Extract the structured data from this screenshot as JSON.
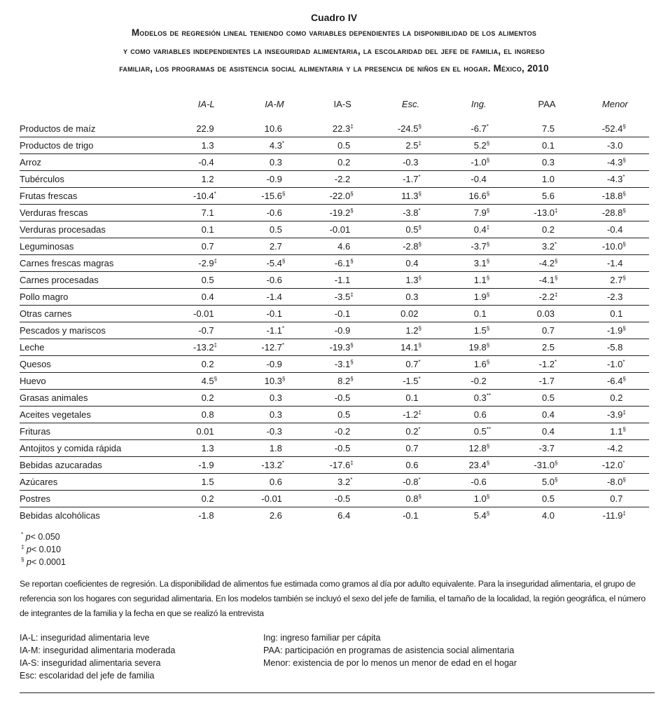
{
  "cuadro": "Cuadro IV",
  "title_lines": [
    "Modelos de regresión lineal teniendo como variables dependientes la disponibilidad de los alimentos",
    "y como variables independientes la inseguridad alimentaria, la escolaridad del jefe de familia, el ingreso",
    "familiar, los programas de asistencia social alimentaria y la presencia de niños en el hogar. México, 2010"
  ],
  "columns": [
    "IA-L",
    "IA-M",
    "IA-S",
    "Esc.",
    "Ing.",
    "PAA",
    "Menor"
  ],
  "rows": [
    {
      "label": "Productos de maíz",
      "values": [
        "22.9",
        "10.6",
        "22.3‡",
        "-24.5§",
        "-6.7*",
        "7.5",
        "-52.4§"
      ]
    },
    {
      "label": "Productos de trigo",
      "values": [
        "1.3",
        "4.3*",
        "0.5",
        "2.5‡",
        "5.2§",
        "0.1",
        "-3.0"
      ]
    },
    {
      "label": "Arroz",
      "values": [
        "-0.4",
        "0.3",
        "0.2",
        "-0.3",
        "-1.0§",
        "0.3",
        "-4.3§"
      ]
    },
    {
      "label": "Tubérculos",
      "values": [
        "1.2",
        "-0.9",
        "-2.2",
        "-1.7*",
        "-0.4",
        "1.0",
        "-4.3*"
      ]
    },
    {
      "label": "Frutas frescas",
      "values": [
        "-10.4*",
        "-15.6§",
        "-22.0§",
        "11.3§",
        "16.6§",
        "5.6",
        "-18.8§"
      ]
    },
    {
      "label": "Verduras frescas",
      "values": [
        "7.1",
        "-0.6",
        "-19.2§",
        "-3.8*",
        "7.9§",
        "-13.0‡",
        "-28.8§"
      ]
    },
    {
      "label": "Verduras procesadas",
      "values": [
        "0.1",
        "0.5",
        "-0.01",
        "0.5§",
        "0.4‡",
        "0.2",
        "-0.4"
      ]
    },
    {
      "label": "Leguminosas",
      "values": [
        "0.7",
        "2.7",
        "4.6",
        "-2.8§",
        "-3.7§",
        "3.2*",
        "-10.0§"
      ]
    },
    {
      "label": "Carnes frescas magras",
      "values": [
        "-2.9‡",
        "-5.4§",
        "-6.1§",
        "0.4",
        "3.1§",
        "-4.2§",
        "-1.4"
      ]
    },
    {
      "label": "Carnes procesadas",
      "values": [
        "0.5",
        "-0.6",
        "-1.1",
        "1.3§",
        "1.1§",
        "-4.1§",
        "2.7§"
      ]
    },
    {
      "label": "Pollo magro",
      "values": [
        "0.4",
        "-1.4",
        "-3.5‡",
        "0.3",
        "1.9§",
        "-2.2‡",
        "-2.3"
      ]
    },
    {
      "label": "Otras carnes",
      "values": [
        "-0.01",
        "-0.1",
        "-0.1",
        "0.02",
        "0.1",
        "0.03",
        "0.1"
      ]
    },
    {
      "label": "Pescados y mariscos",
      "values": [
        "-0.7",
        "-1.1*",
        "-0.9",
        "1.2§",
        "1.5§",
        "0.7",
        "-1.9§"
      ]
    },
    {
      "label": "Leche",
      "values": [
        "-13.2‡",
        "-12.7*",
        "-19.3§",
        "14.1§",
        "19.8§",
        "2.5",
        "-5.8"
      ]
    },
    {
      "label": "Quesos",
      "values": [
        "0.2",
        "-0.9",
        "-3.1§",
        "0.7*",
        "1.6§",
        "-1.2*",
        "-1.0*"
      ]
    },
    {
      "label": "Huevo",
      "values": [
        "4.5§",
        "10.3§",
        "8.2§",
        "-1.5*",
        "-0.2",
        "-1.7",
        "-6.4§"
      ]
    },
    {
      "label": "Grasas animales",
      "values": [
        "0.2",
        "0.3",
        "-0.5",
        "0.1",
        "0.3**",
        "0.5",
        "0.2"
      ]
    },
    {
      "label": "Aceites vegetales",
      "values": [
        "0.8",
        "0.3",
        "0.5",
        "-1.2‡",
        "0.6",
        "0.4",
        "-3.9‡"
      ]
    },
    {
      "label": "Frituras",
      "values": [
        "0.01",
        "-0.3",
        "-0.2",
        "0.2*",
        "0.5**",
        "0.4",
        "1.1§"
      ]
    },
    {
      "label": "Antojitos y comida rápida",
      "values": [
        "1.3",
        "1.8",
        "-0.5",
        "0.7",
        "12.8§",
        "-3.7",
        "-4.2"
      ]
    },
    {
      "label": "Bebidas azucaradas",
      "values": [
        "-1.9",
        "-13.2*",
        "-17.6‡",
        "0.6",
        "23.4§",
        "-31.0§",
        "-12.0*"
      ]
    },
    {
      "label": "Azúcares",
      "values": [
        "1.5",
        "0.6",
        "3.2*",
        "-0.8*",
        "-0.6",
        "5.0§",
        "-8.0§"
      ]
    },
    {
      "label": "Postres",
      "values": [
        "0.2",
        "-0.01",
        "-0.5",
        "0.8§",
        "1.0§",
        "0.5",
        "0.7"
      ]
    },
    {
      "label": "Bebidas alcohólicas",
      "values": [
        "-1.8",
        "2.6",
        "6.4",
        "-0.1",
        "5.4§",
        "4.0",
        "-11.9‡"
      ]
    }
  ],
  "significance": [
    {
      "mark": "*",
      "text": "p< 0.050"
    },
    {
      "mark": "‡",
      "text": "p< 0.010"
    },
    {
      "mark": "§",
      "text": "p< 0.0001"
    }
  ],
  "notes": "Se reportan coeficientes de regresión. La disponibilidad de alimentos fue estimada como gramos al día por adulto equivalente. Para la inseguridad alimentaria, el grupo de referencia son los hogares con seguridad alimentaria. En los modelos también se incluyó el sexo del jefe de familia, el tamaño de la localidad, la región geográfica, el número de integrantes de la familia y la fecha en que se realizó la entrevista",
  "abbreviations_left": [
    "IA-L: inseguridad alimentaria leve",
    "IA-M: inseguridad alimentaria moderada",
    "IA-S: inseguridad alimentaria severa",
    "Esc: escolaridad del jefe de familia"
  ],
  "abbreviations_right": [
    "Ing: ingreso familiar per cápita",
    "PAA: participación en programas de asistencia social alimentaria",
    "Menor: existencia de por lo menos un menor de edad en el hogar"
  ]
}
